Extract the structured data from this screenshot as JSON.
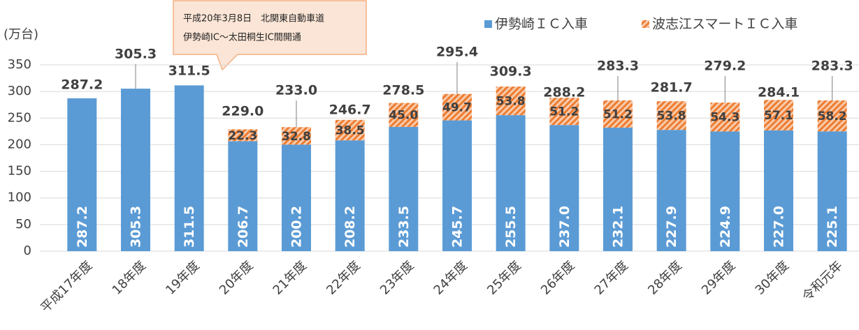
{
  "chart_data": {
    "type": "stacked_bar",
    "y_unit_label": "(万台)",
    "annotation": [
      "平成20年3月8日　北関東自動車道",
      "伊勢崎IC～太田桐生IC間開通"
    ],
    "categories": [
      "平成17年度",
      "18年度",
      "19年度",
      "20年度",
      "21年度",
      "22年度",
      "23年度",
      "24年度",
      "25年度",
      "26年度",
      "27年度",
      "28年度",
      "29年度",
      "30年度",
      "令和元年"
    ],
    "series": [
      {
        "name": "伊勢崎ＩＣ入車",
        "color": "#5b9bd5",
        "values": [
          287.2,
          305.3,
          311.5,
          206.7,
          200.2,
          208.2,
          233.5,
          245.7,
          255.5,
          237.0,
          232.1,
          227.9,
          224.9,
          227.0,
          225.1
        ],
        "value_labels": [
          "287.2",
          "305.3",
          "311.5",
          "206.7",
          "200.2",
          "208.2",
          "233.5",
          "245.7",
          "255.5",
          "237.0",
          "232.1",
          "227.9",
          "224.9",
          "227.0",
          "225.1"
        ]
      },
      {
        "name": "波志江スマートＩＣ入車",
        "color": "#f4b183",
        "values": [
          null,
          null,
          null,
          22.3,
          32.8,
          38.5,
          45.0,
          49.7,
          53.8,
          51.2,
          51.2,
          53.8,
          54.3,
          57.1,
          58.2
        ],
        "value_labels": [
          null,
          null,
          null,
          "22.3",
          "32.8",
          "38.5",
          "45.0",
          "49.7",
          "53.8",
          "51.2",
          "51.2",
          "53.8",
          "54.3",
          "57.1",
          "58.2"
        ]
      }
    ],
    "totals": [
      287.2,
      305.3,
      311.5,
      229.0,
      233.0,
      246.7,
      278.5,
      295.4,
      309.3,
      288.2,
      283.3,
      281.7,
      279.2,
      284.1,
      283.3
    ],
    "total_labels": [
      "287.2",
      "305.3",
      "311.5",
      "229.0",
      "233.0",
      "246.7",
      "278.5",
      "295.4",
      "309.3",
      "288.2",
      "283.3",
      "281.7",
      "279.2",
      "284.1",
      "283.3"
    ],
    "ylim": [
      0,
      350
    ],
    "yticks": [
      0,
      50,
      100,
      150,
      200,
      250,
      300,
      350
    ],
    "grid": true,
    "legend": "top-right"
  }
}
